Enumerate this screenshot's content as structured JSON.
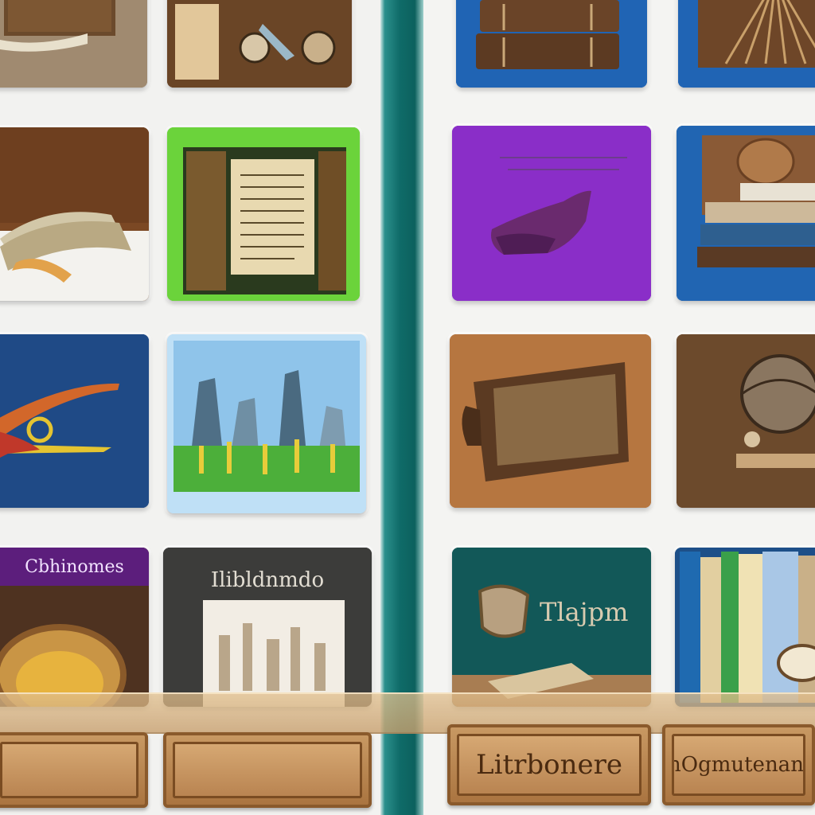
{
  "library": {
    "tiles": [
      {
        "name": "tile-open-book",
        "caption": ""
      },
      {
        "name": "tile-vintage-tools",
        "caption": ""
      },
      {
        "name": "tile-brown-book",
        "caption": ""
      },
      {
        "name": "tile-green-manuscript",
        "caption": ""
      },
      {
        "name": "tile-blue-emblem",
        "caption": ""
      },
      {
        "name": "tile-city-landscape",
        "caption": ""
      },
      {
        "name": "tile-purple-collection",
        "caption": "Cbhinomes"
      },
      {
        "name": "tile-gray-gallery",
        "caption": "Ilibldnmdo"
      },
      {
        "name": "tile-stacked-books",
        "caption": ""
      },
      {
        "name": "tile-carved-wood",
        "caption": ""
      },
      {
        "name": "tile-purple-shoe",
        "caption": ""
      },
      {
        "name": "tile-blue-bookstack",
        "caption": ""
      },
      {
        "name": "tile-leather-case",
        "caption": ""
      },
      {
        "name": "tile-globe-stand",
        "caption": ""
      },
      {
        "name": "tile-teal-books",
        "caption": "Tlajpm"
      },
      {
        "name": "tile-bookshelf",
        "caption": ""
      }
    ],
    "plaques": {
      "left_a": "",
      "left_b": "",
      "right_a": "Litrbonere",
      "right_b": "lhOgmutenane"
    }
  },
  "colors": {
    "divider": "#0f6b68",
    "accent_green": "#6ad13a",
    "accent_purple": "#8b2fc9",
    "accent_blue": "#1f63b3"
  }
}
